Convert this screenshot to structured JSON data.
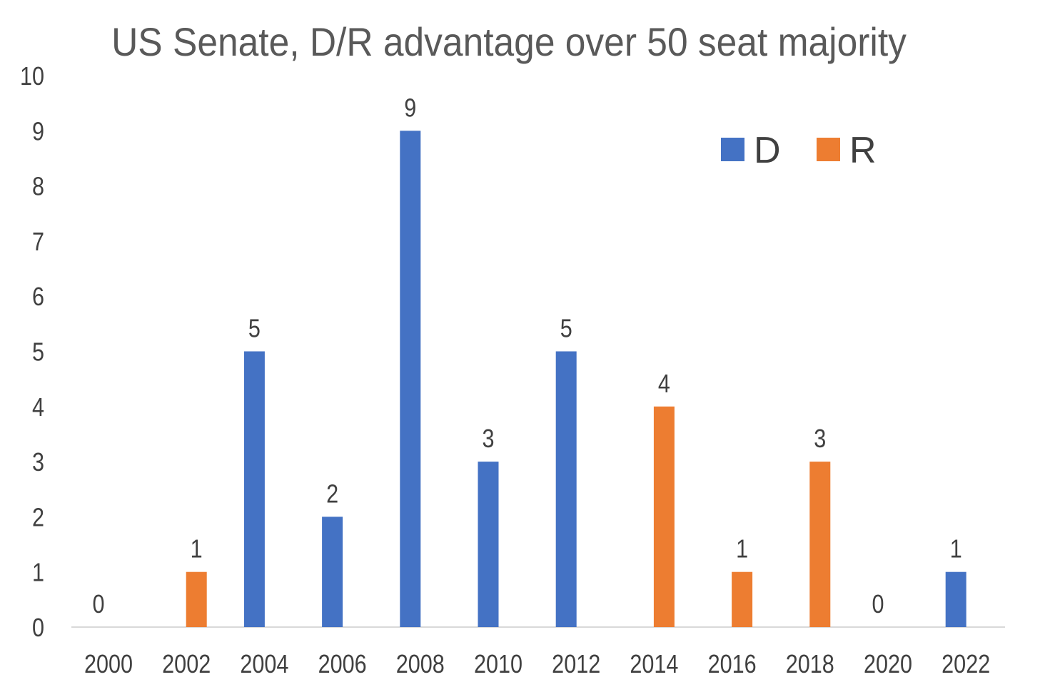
{
  "chart_data": {
    "type": "bar",
    "title": "US Senate, D/R advantage over 50 seat majority",
    "xlabel": "",
    "ylabel": "",
    "ylim": [
      0,
      10
    ],
    "yticks": [
      "0",
      "1",
      "2",
      "3",
      "4",
      "5",
      "6",
      "7",
      "8",
      "9",
      "10"
    ],
    "categories": [
      "2000",
      "2002",
      "2004",
      "2006",
      "2008",
      "2010",
      "2012",
      "2014",
      "2016",
      "2018",
      "2020",
      "2022"
    ],
    "series": [
      {
        "name": "D",
        "color": "#4472C4",
        "values": [
          0,
          null,
          5,
          2,
          9,
          3,
          5,
          null,
          null,
          null,
          0,
          1
        ]
      },
      {
        "name": "R",
        "color": "#ED7D31",
        "values": [
          null,
          1,
          null,
          null,
          null,
          null,
          null,
          4,
          1,
          3,
          null,
          null
        ]
      }
    ],
    "legend": {
      "position": "top-right",
      "entries": [
        "D",
        "R"
      ]
    },
    "grid": false
  }
}
